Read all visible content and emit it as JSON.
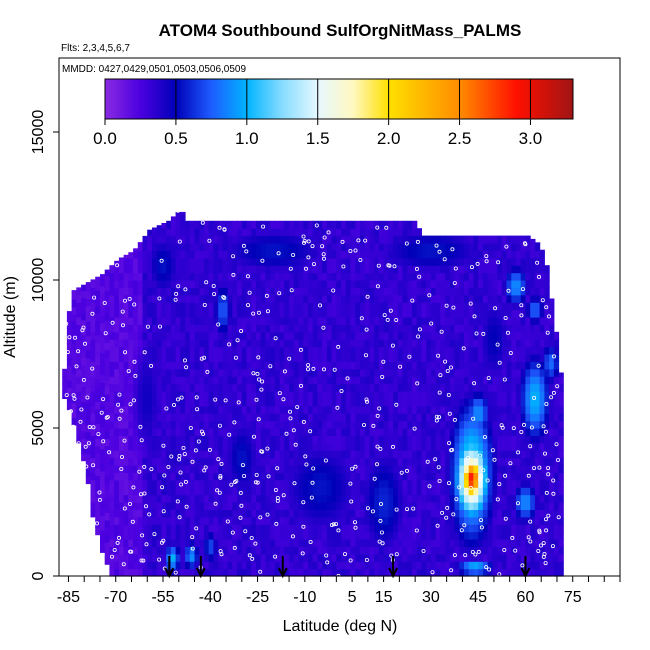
{
  "chart_data": {
    "type": "heatmap",
    "title": "ATOM4 Southbound SulfOrgNitMass_PALMS",
    "subtitle_flights": "Flts: 2,3,4,5,6,7",
    "subtitle_dates": "MMDD: 0427,0429,0501,0503,0506,0509",
    "xlabel": "Latitude (deg N)",
    "ylabel": "Altitude (m)",
    "xlim": [
      -88,
      90
    ],
    "ylim": [
      0,
      17500
    ],
    "x_ticks": [
      -85,
      -70,
      -55,
      -40,
      -25,
      -10,
      5,
      15,
      30,
      45,
      60,
      75
    ],
    "y_ticks": [
      0,
      5000,
      10000,
      15000
    ],
    "colorbar": {
      "range": [
        0,
        3.3
      ],
      "ticks": [
        0.0,
        0.5,
        1.0,
        1.5,
        2.0,
        2.5,
        3.0
      ],
      "tick_labels": [
        "0.0",
        "0.5",
        "1.0",
        "1.5",
        "2.0",
        "2.5",
        "3.0"
      ],
      "stops": [
        {
          "v": 0.0,
          "color": "#8a2be2"
        },
        {
          "v": 0.25,
          "color": "#4b00e0"
        },
        {
          "v": 0.5,
          "color": "#0000b8"
        },
        {
          "v": 0.75,
          "color": "#1e5cff"
        },
        {
          "v": 1.0,
          "color": "#00b4ff"
        },
        {
          "v": 1.25,
          "color": "#87dcff"
        },
        {
          "v": 1.5,
          "color": "#e6f8ff"
        },
        {
          "v": 1.75,
          "color": "#fff8c0"
        },
        {
          "v": 2.0,
          "color": "#ffe000"
        },
        {
          "v": 2.5,
          "color": "#ff8c00"
        },
        {
          "v": 2.9,
          "color": "#ff1000"
        },
        {
          "v": 3.3,
          "color": "#a01414"
        }
      ]
    },
    "profile_tops": [
      {
        "lat": -87,
        "top": 7000
      },
      {
        "lat": -85,
        "top": 9600
      },
      {
        "lat": -80,
        "top": 9900
      },
      {
        "lat": -75,
        "top": 10200
      },
      {
        "lat": -70,
        "top": 10700
      },
      {
        "lat": -65,
        "top": 11000
      },
      {
        "lat": -60,
        "top": 11700
      },
      {
        "lat": -54,
        "top": 12000
      },
      {
        "lat": -50,
        "top": 12400
      },
      {
        "lat": -48,
        "top": 12000
      },
      {
        "lat": -40,
        "top": 12000
      },
      {
        "lat": -25,
        "top": 12000
      },
      {
        "lat": -10,
        "top": 12000
      },
      {
        "lat": 5,
        "top": 12000
      },
      {
        "lat": 25,
        "top": 12000
      },
      {
        "lat": 26,
        "top": 11500
      },
      {
        "lat": 40,
        "top": 11500
      },
      {
        "lat": 56,
        "top": 11500
      },
      {
        "lat": 60,
        "top": 11500
      },
      {
        "lat": 64,
        "top": 11200
      },
      {
        "lat": 66,
        "top": 10500
      },
      {
        "lat": 68,
        "top": 9000
      },
      {
        "lat": 70,
        "top": 7500
      },
      {
        "lat": 72,
        "top": 5000
      }
    ],
    "profile_bottoms": [
      {
        "lat": -87,
        "bottom": 6000
      },
      {
        "lat": -85,
        "bottom": 5500
      },
      {
        "lat": -80,
        "bottom": 3500
      },
      {
        "lat": -78,
        "bottom": 2000
      },
      {
        "lat": -75,
        "bottom": 800
      },
      {
        "lat": -72,
        "bottom": 0
      },
      {
        "lat": 72,
        "bottom": 0
      }
    ],
    "field_blobs": [
      {
        "lat": 43,
        "alt": 3300,
        "v": 2.9,
        "sx": 3,
        "sy": 700
      },
      {
        "lat": 43,
        "alt": 3300,
        "v": 2.0,
        "sx": 5,
        "sy": 1300
      },
      {
        "lat": 43,
        "alt": 3500,
        "v": 1.2,
        "sx": 7,
        "sy": 2400
      },
      {
        "lat": 44,
        "alt": 300,
        "v": 1.0,
        "sx": 6,
        "sy": 300
      },
      {
        "lat": 63,
        "alt": 6000,
        "v": 1.0,
        "sx": 5,
        "sy": 1500
      },
      {
        "lat": 68,
        "alt": 7200,
        "v": 0.8,
        "sx": 3,
        "sy": 700
      },
      {
        "lat": 57,
        "alt": 9800,
        "v": 0.9,
        "sx": 4,
        "sy": 700
      },
      {
        "lat": 63,
        "alt": 9000,
        "v": 0.8,
        "sx": 3,
        "sy": 500
      },
      {
        "lat": 60,
        "alt": 2500,
        "v": 0.9,
        "sx": 4,
        "sy": 700
      },
      {
        "lat": 45,
        "alt": 5500,
        "v": 0.9,
        "sx": 4,
        "sy": 800
      },
      {
        "lat": -52,
        "alt": 600,
        "v": 1.0,
        "sx": 2.5,
        "sy": 500
      },
      {
        "lat": -46,
        "alt": 700,
        "v": 0.9,
        "sx": 2.5,
        "sy": 500
      },
      {
        "lat": -40,
        "alt": 1000,
        "v": 0.7,
        "sx": 2.5,
        "sy": 600
      },
      {
        "lat": -36,
        "alt": 9000,
        "v": 0.75,
        "sx": 3,
        "sy": 1000
      },
      {
        "lat": -5,
        "alt": 3000,
        "v": 0.55,
        "sx": 14,
        "sy": 1800
      },
      {
        "lat": 15,
        "alt": 2500,
        "v": 0.6,
        "sx": 8,
        "sy": 2000
      },
      {
        "lat": -20,
        "alt": 11000,
        "v": 0.55,
        "sx": 20,
        "sy": 900
      },
      {
        "lat": 30,
        "alt": 11000,
        "v": 0.55,
        "sx": 20,
        "sy": 900
      },
      {
        "lat": 50,
        "alt": 8000,
        "v": 0.5,
        "sx": 6,
        "sy": 1800
      },
      {
        "lat": -55,
        "alt": 10500,
        "v": 0.55,
        "sx": 6,
        "sy": 1200
      },
      {
        "lat": -30,
        "alt": 4000,
        "v": 0.55,
        "sx": 6,
        "sy": 1500
      },
      {
        "lat": -60,
        "alt": 6000,
        "v": 0.45,
        "sx": 6,
        "sy": 2500
      }
    ],
    "sounding_markers_lat": [
      -53,
      -43,
      -17,
      18,
      60
    ]
  }
}
